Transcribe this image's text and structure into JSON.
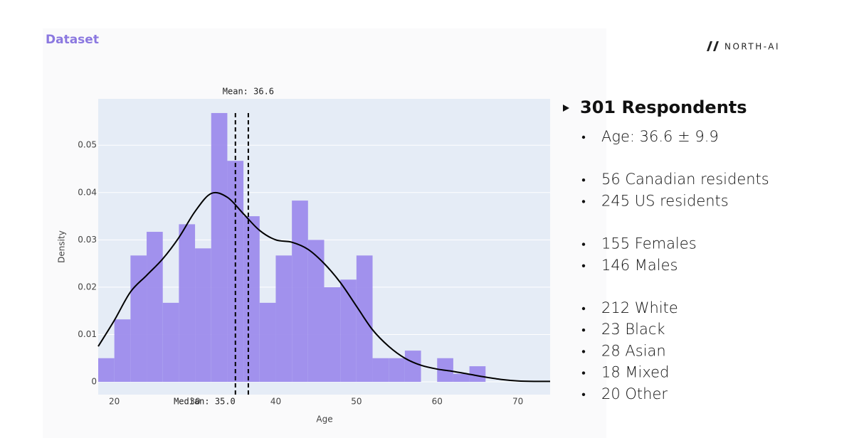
{
  "header": {
    "title": "Dataset",
    "logo": "NORTH-AI"
  },
  "chart_data": {
    "type": "histogram",
    "xlabel": "Age",
    "ylabel": "Density",
    "bins": [
      18,
      20,
      22,
      24,
      26,
      28,
      30,
      32,
      34,
      36,
      38,
      40,
      42,
      44,
      46,
      48,
      50,
      52,
      54,
      56,
      58,
      60,
      62,
      64,
      66
    ],
    "values": [
      0.005,
      0.0132,
      0.0267,
      0.0317,
      0.0167,
      0.0333,
      0.0282,
      0.0568,
      0.0467,
      0.035,
      0.0167,
      0.0267,
      0.0383,
      0.03,
      0.02,
      0.0216,
      0.0267,
      0.005,
      0.005,
      0.0066,
      0,
      0.005,
      0.0017,
      0.0033
    ],
    "color": "#9d8cec",
    "lines": [
      {
        "color": "#000000",
        "x": [
          18,
          20,
          22,
          24,
          26,
          28,
          30,
          32,
          34,
          36,
          38,
          40,
          42,
          44,
          46,
          48,
          50,
          52,
          54,
          56,
          58,
          60,
          62,
          64,
          66,
          68,
          70,
          72,
          74
        ],
        "values": [
          0.0075,
          0.013,
          0.019,
          0.0225,
          0.026,
          0.0305,
          0.036,
          0.0398,
          0.039,
          0.0355,
          0.032,
          0.03,
          0.0295,
          0.028,
          0.025,
          0.021,
          0.016,
          0.011,
          0.0075,
          0.005,
          0.0035,
          0.0027,
          0.0022,
          0.0016,
          0.001,
          0.0005,
          0.0002,
          0.0001,
          0.0001
        ]
      }
    ],
    "vlines": [
      {
        "value": 36.6,
        "label": "Mean: 36.6",
        "position": "top"
      },
      {
        "value": 35.0,
        "label": "Median: 35.0",
        "position": "bottom"
      }
    ],
    "xlim": [
      18,
      74
    ],
    "ylim": [
      -0.0027,
      0.0598
    ],
    "xticks": [
      20,
      30,
      40,
      50,
      60,
      70
    ],
    "yticks": [
      0,
      0.01,
      0.02,
      0.03,
      0.04,
      0.05
    ],
    "grid": true
  },
  "panel": {
    "heading": "301 Respondents",
    "groups": [
      [
        "Age: 36.6 ± 9.9"
      ],
      [
        "56 Canadian residents",
        "245 US residents"
      ],
      [
        "155 Females",
        "146 Males"
      ],
      [
        "212 White",
        "23 Black",
        "28 Asian",
        "18 Mixed",
        "20 Other"
      ]
    ]
  }
}
